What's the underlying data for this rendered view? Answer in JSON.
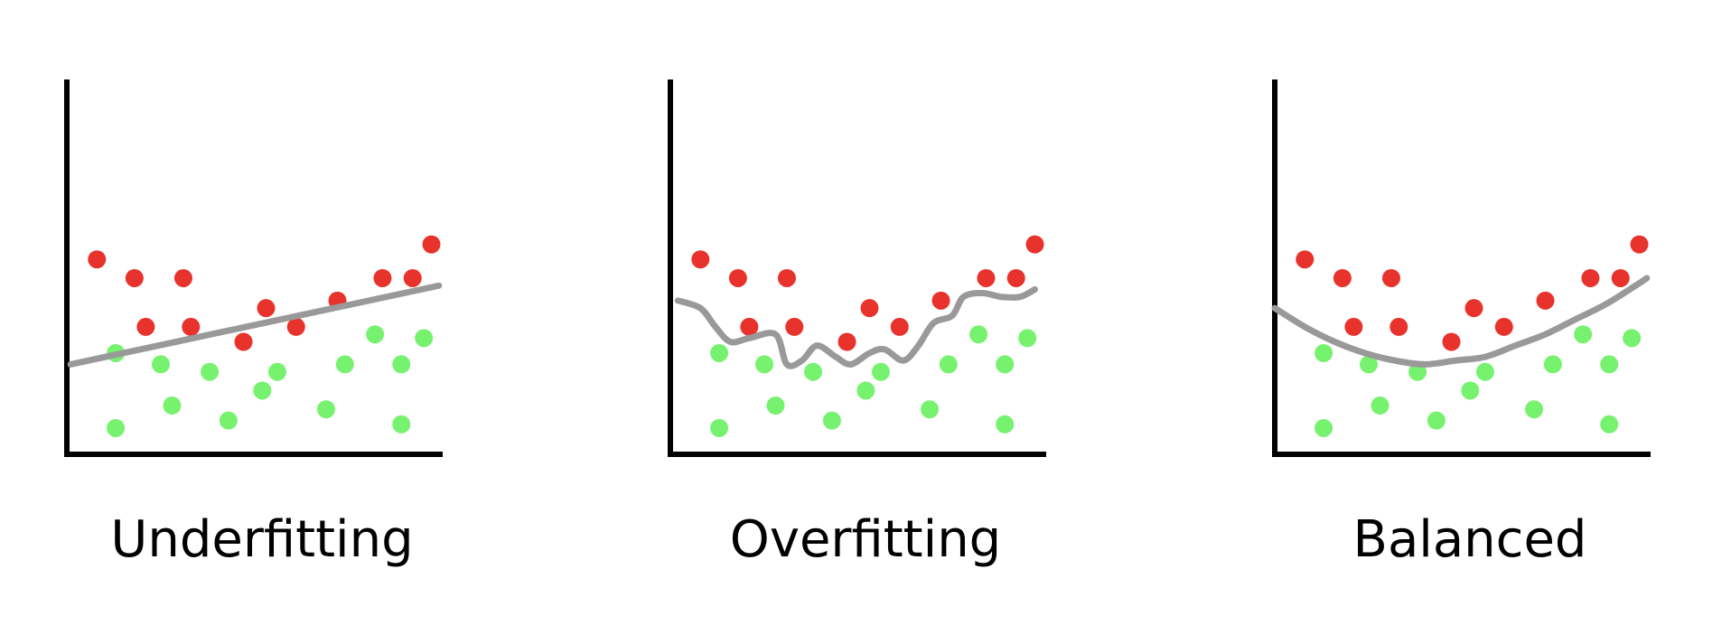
{
  "figure": {
    "background": "#ffffff",
    "axis_color": "#000000",
    "line_color": "#999999",
    "class_a_color": "#e8322c",
    "class_b_color": "#77f26f"
  },
  "panels": [
    {
      "name": "underfitting",
      "title": "Underfitting",
      "fit_type": "linear",
      "red_points": [
        [
          0.08,
          0.52
        ],
        [
          0.18,
          0.47
        ],
        [
          0.31,
          0.47
        ],
        [
          0.21,
          0.34
        ],
        [
          0.33,
          0.34
        ],
        [
          0.53,
          0.39
        ],
        [
          0.47,
          0.3
        ],
        [
          0.61,
          0.34
        ],
        [
          0.72,
          0.41
        ],
        [
          0.84,
          0.47
        ],
        [
          0.92,
          0.47
        ],
        [
          0.97,
          0.56
        ]
      ],
      "green_points": [
        [
          0.13,
          0.27
        ],
        [
          0.25,
          0.24
        ],
        [
          0.38,
          0.22
        ],
        [
          0.56,
          0.22
        ],
        [
          0.74,
          0.24
        ],
        [
          0.82,
          0.32
        ],
        [
          0.89,
          0.24
        ],
        [
          0.95,
          0.31
        ],
        [
          0.28,
          0.13
        ],
        [
          0.43,
          0.09
        ],
        [
          0.52,
          0.17
        ],
        [
          0.69,
          0.12
        ],
        [
          0.13,
          0.07
        ],
        [
          0.89,
          0.08
        ]
      ],
      "curve": [
        [
          0.01,
          0.24
        ],
        [
          0.99,
          0.45
        ]
      ]
    },
    {
      "name": "overfitting",
      "title": "Overfitting",
      "fit_type": "wiggly",
      "red_points": [
        [
          0.08,
          0.52
        ],
        [
          0.18,
          0.47
        ],
        [
          0.31,
          0.47
        ],
        [
          0.21,
          0.34
        ],
        [
          0.33,
          0.34
        ],
        [
          0.53,
          0.39
        ],
        [
          0.47,
          0.3
        ],
        [
          0.61,
          0.34
        ],
        [
          0.72,
          0.41
        ],
        [
          0.84,
          0.47
        ],
        [
          0.92,
          0.47
        ],
        [
          0.97,
          0.56
        ]
      ],
      "green_points": [
        [
          0.13,
          0.27
        ],
        [
          0.25,
          0.24
        ],
        [
          0.38,
          0.22
        ],
        [
          0.56,
          0.22
        ],
        [
          0.74,
          0.24
        ],
        [
          0.82,
          0.32
        ],
        [
          0.89,
          0.24
        ],
        [
          0.95,
          0.31
        ],
        [
          0.28,
          0.13
        ],
        [
          0.43,
          0.09
        ],
        [
          0.52,
          0.17
        ],
        [
          0.69,
          0.12
        ],
        [
          0.13,
          0.07
        ],
        [
          0.89,
          0.08
        ]
      ],
      "curve": [
        [
          0.02,
          0.41
        ],
        [
          0.08,
          0.39
        ],
        [
          0.12,
          0.34
        ],
        [
          0.16,
          0.3
        ],
        [
          0.21,
          0.31
        ],
        [
          0.28,
          0.32
        ],
        [
          0.31,
          0.24
        ],
        [
          0.35,
          0.25
        ],
        [
          0.39,
          0.29
        ],
        [
          0.44,
          0.26
        ],
        [
          0.48,
          0.24
        ],
        [
          0.53,
          0.27
        ],
        [
          0.57,
          0.28
        ],
        [
          0.62,
          0.25
        ],
        [
          0.66,
          0.29
        ],
        [
          0.7,
          0.35
        ],
        [
          0.75,
          0.37
        ],
        [
          0.78,
          0.42
        ],
        [
          0.83,
          0.43
        ],
        [
          0.88,
          0.42
        ],
        [
          0.93,
          0.42
        ],
        [
          0.97,
          0.44
        ]
      ]
    },
    {
      "name": "balanced",
      "title": "Balanced",
      "fit_type": "quadratic",
      "red_points": [
        [
          0.08,
          0.52
        ],
        [
          0.18,
          0.47
        ],
        [
          0.31,
          0.47
        ],
        [
          0.21,
          0.34
        ],
        [
          0.33,
          0.34
        ],
        [
          0.53,
          0.39
        ],
        [
          0.47,
          0.3
        ],
        [
          0.61,
          0.34
        ],
        [
          0.72,
          0.41
        ],
        [
          0.84,
          0.47
        ],
        [
          0.92,
          0.47
        ],
        [
          0.97,
          0.56
        ]
      ],
      "green_points": [
        [
          0.13,
          0.27
        ],
        [
          0.25,
          0.24
        ],
        [
          0.38,
          0.22
        ],
        [
          0.56,
          0.22
        ],
        [
          0.74,
          0.24
        ],
        [
          0.82,
          0.32
        ],
        [
          0.89,
          0.24
        ],
        [
          0.95,
          0.31
        ],
        [
          0.28,
          0.13
        ],
        [
          0.43,
          0.09
        ],
        [
          0.52,
          0.17
        ],
        [
          0.69,
          0.12
        ],
        [
          0.13,
          0.07
        ],
        [
          0.89,
          0.08
        ]
      ],
      "curve": [
        [
          0.0,
          0.39
        ],
        [
          0.08,
          0.34
        ],
        [
          0.16,
          0.3
        ],
        [
          0.24,
          0.27
        ],
        [
          0.32,
          0.25
        ],
        [
          0.4,
          0.24
        ],
        [
          0.48,
          0.25
        ],
        [
          0.56,
          0.26
        ],
        [
          0.64,
          0.29
        ],
        [
          0.72,
          0.32
        ],
        [
          0.8,
          0.36
        ],
        [
          0.88,
          0.4
        ],
        [
          0.96,
          0.45
        ],
        [
          0.99,
          0.47
        ]
      ]
    }
  ]
}
